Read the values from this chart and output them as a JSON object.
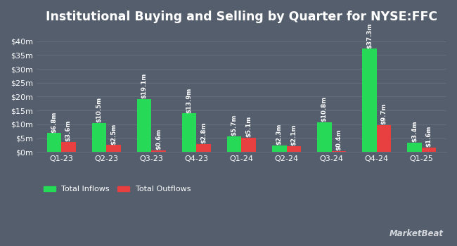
{
  "title": "Institutional Buying and Selling by Quarter for NYSE:FFC",
  "quarters": [
    "Q1-23",
    "Q2-23",
    "Q3-23",
    "Q4-23",
    "Q1-24",
    "Q2-24",
    "Q3-24",
    "Q4-24",
    "Q1-25"
  ],
  "inflows": [
    6.8,
    10.5,
    19.1,
    13.9,
    5.7,
    2.3,
    10.8,
    37.3,
    3.4
  ],
  "outflows": [
    3.6,
    2.5,
    0.6,
    2.8,
    5.1,
    2.1,
    0.4,
    9.7,
    1.6
  ],
  "inflow_labels": [
    "$6.8m",
    "$10.5m",
    "$19.1m",
    "$13.9m",
    "$5.7m",
    "$2.3m",
    "$10.8m",
    "$37.3m",
    "$3.4m"
  ],
  "outflow_labels": [
    "$3.6m",
    "$2.5m",
    "$0.6m",
    "$2.8m",
    "$5.1m",
    "$2.1m",
    "$0.4m",
    "$9.7m",
    "$1.6m"
  ],
  "inflow_color": "#26d957",
  "outflow_color": "#e84040",
  "bg_color": "#545e6d",
  "grid_color": "#636d7c",
  "text_color": "#ffffff",
  "ylabel_ticks": [
    "$0m",
    "$5m",
    "$10m",
    "$15m",
    "$20m",
    "$25m",
    "$30m",
    "$35m",
    "$40m"
  ],
  "ytick_vals": [
    0,
    5,
    10,
    15,
    20,
    25,
    30,
    35,
    40
  ],
  "ylim": [
    0,
    44
  ],
  "bar_width": 0.32,
  "legend_inflow": "Total Inflows",
  "legend_outflow": "Total Outflows",
  "title_fontsize": 12.5,
  "tick_fontsize": 8,
  "label_fontsize": 6.2,
  "watermark": "MarketBeat"
}
